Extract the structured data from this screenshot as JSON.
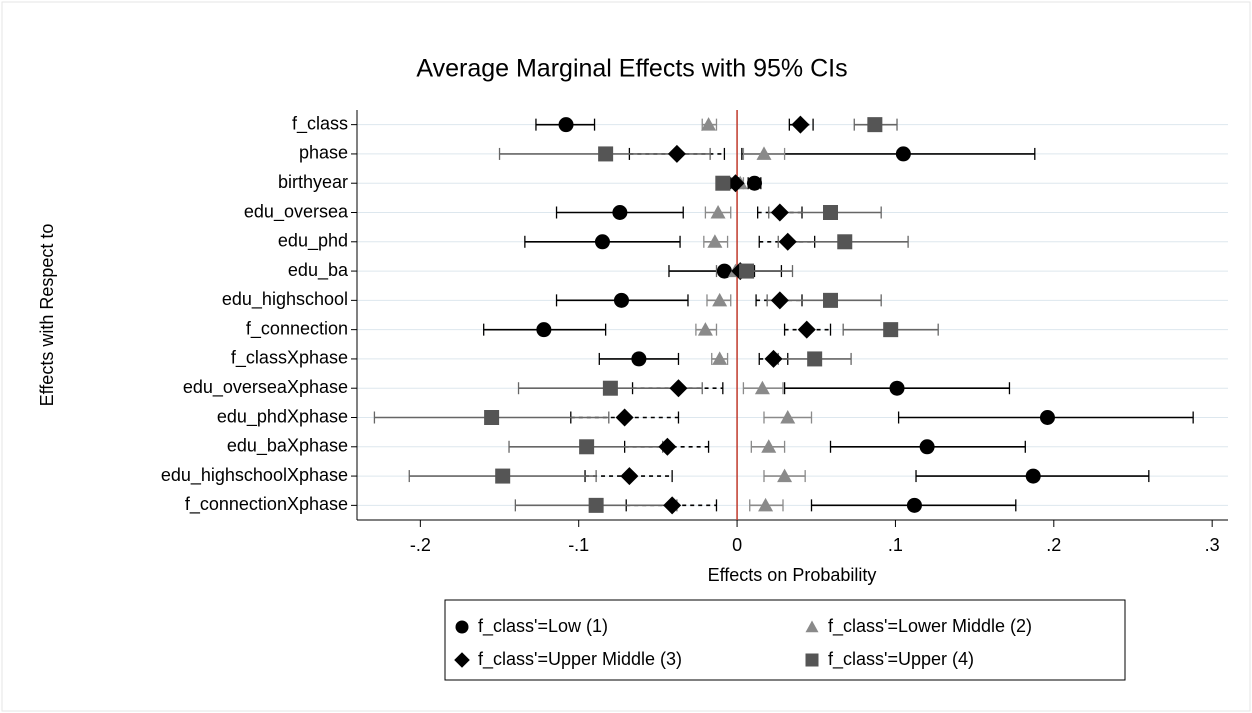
{
  "chart_data": {
    "type": "coefplot",
    "title": "Average Marginal Effects with 95% CIs",
    "x_label": "Effects on Probability",
    "y_label": "Effects with Respect to",
    "categories": [
      "f_class",
      "phase",
      "birthyear",
      "edu_oversea",
      "edu_phd",
      "edu_ba",
      "edu_highschool",
      "f_connection",
      "f_classXphase",
      "edu_overseaXphase",
      "edu_phdXphase",
      "edu_baXphase",
      "edu_highschoolXphase",
      "f_connectionXphase"
    ],
    "xlim": [
      -0.24,
      0.31
    ],
    "xticks": [
      {
        "value": -0.2,
        "label": "-.2"
      },
      {
        "value": -0.1,
        "label": "-.1"
      },
      0,
      {
        "value": 0.1,
        "label": ".1"
      },
      {
        "value": 0.2,
        "label": ".2"
      },
      {
        "value": 0.3,
        "label": ".3"
      }
    ],
    "reference_line": 0,
    "reference_color": "#c0392b",
    "grid": true,
    "series": [
      {
        "name": "f_class'=Low (1)",
        "marker": "circle",
        "color": "#000000",
        "ci_color": "#000000",
        "line_style": "solid",
        "values": [
          -0.108,
          0.105,
          0.011,
          -0.074,
          -0.085,
          -0.008,
          -0.073,
          -0.122,
          -0.062,
          0.101,
          0.196,
          0.12,
          0.187,
          0.112
        ],
        "lower": [
          -0.127,
          0.003,
          0.007,
          -0.114,
          -0.134,
          -0.043,
          -0.114,
          -0.16,
          -0.087,
          0.03,
          0.102,
          0.059,
          0.113,
          0.047
        ],
        "upper": [
          -0.09,
          0.188,
          0.015,
          -0.034,
          -0.036,
          0.028,
          -0.031,
          -0.083,
          -0.037,
          0.172,
          0.288,
          0.182,
          0.26,
          0.176
        ]
      },
      {
        "name": "f_class'=Lower Middle (2)",
        "marker": "triangle",
        "color": "#8a8a8a",
        "ci_color": "#8a8a8a",
        "line_style": "solid",
        "values": [
          -0.018,
          0.017,
          0.002,
          -0.012,
          -0.014,
          -0.001,
          -0.011,
          -0.02,
          -0.011,
          0.016,
          0.032,
          0.02,
          0.03,
          0.018
        ],
        "lower": [
          -0.022,
          0.004,
          0.0,
          -0.02,
          -0.021,
          -0.009,
          -0.019,
          -0.026,
          -0.016,
          0.004,
          0.017,
          0.009,
          0.017,
          0.008
        ],
        "upper": [
          -0.013,
          0.03,
          0.004,
          -0.004,
          -0.006,
          0.008,
          -0.004,
          -0.013,
          -0.006,
          0.029,
          0.047,
          0.03,
          0.043,
          0.029
        ]
      },
      {
        "name": "f_class'=Upper Middle (3)",
        "marker": "diamond",
        "color": "#000000",
        "ci_color": "#000000",
        "line_style": "dot",
        "values": [
          0.04,
          -0.038,
          -0.001,
          0.027,
          0.032,
          0.002,
          0.027,
          0.044,
          0.023,
          -0.037,
          -0.071,
          -0.044,
          -0.068,
          -0.041
        ],
        "lower": [
          0.033,
          -0.068,
          -0.004,
          0.013,
          0.014,
          -0.006,
          0.012,
          0.03,
          0.014,
          -0.066,
          -0.105,
          -0.071,
          -0.096,
          -0.07
        ],
        "upper": [
          0.048,
          -0.008,
          0.001,
          0.041,
          0.049,
          0.011,
          0.041,
          0.059,
          0.032,
          -0.009,
          -0.037,
          -0.018,
          -0.041,
          -0.013
        ]
      },
      {
        "name": "f_class'=Upper (4)",
        "marker": "square",
        "color": "#555555",
        "ci_color": "#666666",
        "line_style": "solid",
        "values": [
          0.087,
          -0.083,
          -0.009,
          0.059,
          0.068,
          0.006,
          0.059,
          0.097,
          0.049,
          -0.08,
          -0.155,
          -0.095,
          -0.148,
          -0.089
        ],
        "lower": [
          0.074,
          -0.15,
          -0.013,
          0.02,
          0.026,
          -0.013,
          0.019,
          0.067,
          0.026,
          -0.138,
          -0.229,
          -0.144,
          -0.207,
          -0.14
        ],
        "upper": [
          0.101,
          -0.017,
          -0.005,
          0.091,
          0.108,
          0.035,
          0.091,
          0.127,
          0.072,
          -0.022,
          -0.081,
          -0.047,
          -0.089,
          -0.038
        ]
      }
    ]
  }
}
